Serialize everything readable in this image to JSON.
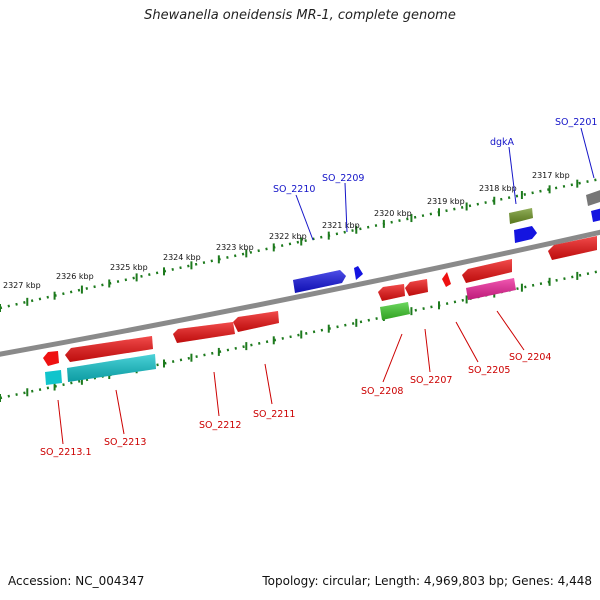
{
  "title": "Shewanella oneidensis MR-1, complete genome",
  "footer": {
    "accession": "Accession: NC_004347",
    "summary": "Topology: circular; Length: 4,969,803 bp; Genes: 4,448"
  },
  "colors": {
    "backbone": "#8a8a8a",
    "tick": "#1d7a1d",
    "label_forward": "#1515c8",
    "label_reverse": "#cc0000",
    "red": "#ee1111",
    "cyan": "#11c4cc",
    "blue": "#1414e0",
    "olive": "#6f9526",
    "green": "#3ecb2c",
    "magenta": "#ee2299",
    "gray": "#777777"
  },
  "kbp_ticks": [
    {
      "label": "2317 kbp"
    },
    {
      "label": "2318 kbp"
    },
    {
      "label": "2319 kbp"
    },
    {
      "label": "2320 kbp"
    },
    {
      "label": "2321 kbp"
    },
    {
      "label": "2322 kbp"
    },
    {
      "label": "2323 kbp"
    },
    {
      "label": "2324 kbp"
    },
    {
      "label": "2325 kbp"
    },
    {
      "label": "2326 kbp"
    },
    {
      "label": "2327 kbp"
    }
  ],
  "forward_labels": [
    "SO_2201",
    "dgkA",
    "SO_2209",
    "SO_2210"
  ],
  "reverse_labels": [
    "SO_2204",
    "SO_2205",
    "SO_2207",
    "SO_2208",
    "SO_2211",
    "SO_2212",
    "SO_2213",
    "SO_2213.1"
  ]
}
